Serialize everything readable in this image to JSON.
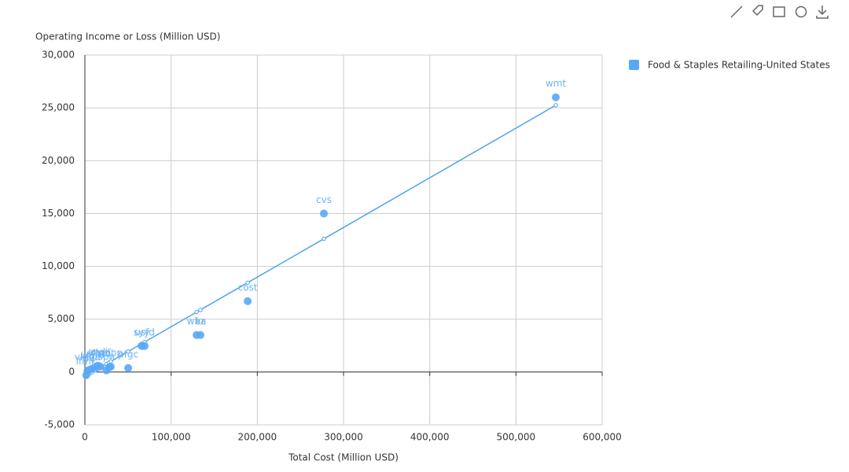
{
  "chart_data": {
    "type": "scatter",
    "x_label": "Total Cost (Million USD)",
    "y_label": "Operating Income or Loss (Million USD)",
    "xlim": [
      0,
      600000
    ],
    "ylim": [
      -5000,
      30000
    ],
    "xticks": [
      0,
      {
        "value": 100000,
        "label": "100,000"
      },
      {
        "value": 200000,
        "label": "200,000"
      },
      {
        "value": 300000,
        "label": "300,000"
      },
      {
        "value": 400000,
        "label": "400,000"
      },
      {
        "value": 500000,
        "label": "500,000"
      },
      {
        "value": 600000,
        "label": "600,000"
      }
    ],
    "yticks": [
      {
        "value": -5000,
        "label": "-5,000"
      },
      0,
      {
        "value": 5000,
        "label": "5,000"
      },
      {
        "value": 10000,
        "label": "10,000"
      },
      {
        "value": 15000,
        "label": "15,000"
      },
      {
        "value": 20000,
        "label": "20,000"
      },
      {
        "value": 25000,
        "label": "25,000"
      },
      {
        "value": 30000,
        "label": "30,000"
      }
    ],
    "grid": true,
    "legend": "top-right",
    "series": [
      {
        "name": "Food & Staples Retailing-United States",
        "color": "#58a8f5",
        "trend_color": "#4da3f0",
        "labels": [
          "ifmk",
          "vlgea",
          "ingl",
          "wmk",
          "sfm",
          "andi",
          "chef",
          "spn",
          "bj",
          "gopp",
          "pfgc",
          "syy",
          "usfd",
          "wba",
          "kr",
          "cost",
          "cvs",
          "wmt"
        ],
        "x": [
          1500,
          3000,
          5000,
          8000,
          12000,
          15000,
          18000,
          25000,
          28000,
          30000,
          50200,
          65700,
          69300,
          129500,
          134000,
          188800,
          277200,
          546200
        ],
        "values": [
          -300,
          100,
          200,
          300,
          450,
          600,
          500,
          150,
          450,
          500,
          370,
          2460,
          2460,
          3500,
          3500,
          6700,
          15000,
          26000
        ],
        "fit": [
          -350,
          -279,
          -185,
          -44,
          144,
          285,
          426,
          755,
          896,
          990,
          1939,
          2668,
          2837,
          5667,
          5878,
          8454,
          12608,
          25251
        ]
      }
    ]
  }
}
